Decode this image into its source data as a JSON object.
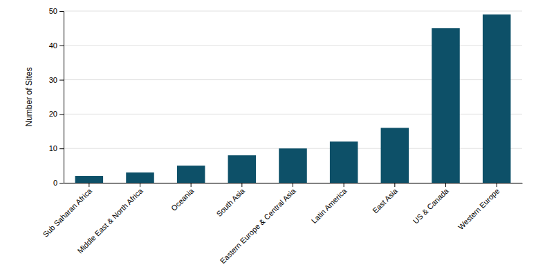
{
  "chart_data": {
    "type": "bar",
    "ylabel": "Number of Sites",
    "categories": [
      "Sub Saharan Africa",
      "Middle East & North Africa",
      "Oceania",
      "South Asia",
      "Eastern Europe & Central Asia",
      "Latin America",
      "East Asia",
      "US & Canada",
      "Western Europe"
    ],
    "values": [
      2,
      3,
      5,
      8,
      10,
      12,
      16,
      45,
      49
    ],
    "color": "#0d5068",
    "ylim": [
      0,
      50
    ],
    "yticks": [
      0,
      10,
      20,
      30,
      40,
      50
    ],
    "grid": true
  }
}
